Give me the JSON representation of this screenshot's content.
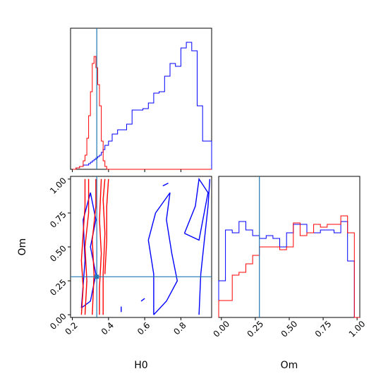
{
  "chart_data": {
    "type": "corner",
    "parameters": [
      "H0",
      "Om"
    ],
    "truths": {
      "H0": 0.335,
      "Om": 0.28
    },
    "colors": {
      "series_a": "#ff0000",
      "series_b": "#0000ff",
      "truth": "#1f77b4"
    },
    "axes": {
      "H0": {
        "xlabel": "H0",
        "xlim": [
          0.19,
          0.97
        ],
        "ticks": [
          0.2,
          0.4,
          0.6,
          0.8
        ],
        "tick_labels": [
          "0.2",
          "0.4",
          "0.6",
          "0.8"
        ]
      },
      "Om": {
        "label": "Om",
        "lim": [
          -0.02,
          1.02
        ],
        "ticks": [
          0.0,
          0.25,
          0.5,
          0.75,
          1.0
        ],
        "tick_labels": [
          "0.00",
          "0.25",
          "0.50",
          "0.75",
          "1.00"
        ]
      }
    },
    "hist_H0": {
      "bins": [
        0.2,
        0.22,
        0.24,
        0.26,
        0.27,
        0.28,
        0.29,
        0.3,
        0.31,
        0.32,
        0.33,
        0.34,
        0.35,
        0.36,
        0.37,
        0.38,
        0.39,
        0.4,
        0.42,
        0.45,
        0.48,
        0.5,
        0.53,
        0.56,
        0.59,
        0.62,
        0.65,
        0.68,
        0.71,
        0.74,
        0.77,
        0.8,
        0.83,
        0.86,
        0.89,
        0.92,
        0.95,
        0.97
      ],
      "series_a": [
        0.0,
        0.01,
        0.02,
        0.06,
        0.1,
        0.22,
        0.38,
        0.55,
        0.75,
        0.8,
        0.72,
        0.6,
        0.45,
        0.2,
        0.06,
        0.02,
        0.0,
        0.0,
        0.0,
        0.0,
        0.0,
        0.0,
        0.0,
        0.0,
        0.0,
        0.0,
        0.0,
        0.0,
        0.0,
        0.0,
        0.0,
        0.0,
        0.0,
        0.0,
        0.0,
        0.0,
        0.0
      ],
      "series_b": [
        0.0,
        0.01,
        0.02,
        0.03,
        0.03,
        0.03,
        0.04,
        0.05,
        0.06,
        0.07,
        0.08,
        0.09,
        0.1,
        0.12,
        0.14,
        0.17,
        0.17,
        0.2,
        0.25,
        0.28,
        0.28,
        0.32,
        0.42,
        0.42,
        0.43,
        0.47,
        0.54,
        0.55,
        0.66,
        0.75,
        0.73,
        0.86,
        0.9,
        0.84,
        0.45,
        0.2,
        0.2
      ]
    },
    "hist_Om": {
      "bins": [
        -0.02,
        0.03,
        0.08,
        0.13,
        0.18,
        0.23,
        0.28,
        0.33,
        0.38,
        0.43,
        0.48,
        0.53,
        0.58,
        0.63,
        0.68,
        0.73,
        0.78,
        0.83,
        0.88,
        0.93,
        0.98,
        1.02
      ],
      "series_a": [
        0.12,
        0.12,
        0.3,
        0.32,
        0.38,
        0.44,
        0.5,
        0.5,
        0.5,
        0.48,
        0.5,
        0.67,
        0.58,
        0.6,
        0.66,
        0.64,
        0.66,
        0.66,
        0.72,
        0.6,
        0.0
      ],
      "series_b": [
        0.26,
        0.62,
        0.6,
        0.68,
        0.62,
        0.58,
        0.56,
        0.58,
        0.56,
        0.5,
        0.6,
        0.66,
        0.66,
        0.6,
        0.6,
        0.62,
        0.62,
        0.6,
        0.68,
        0.4,
        0.0
      ]
    },
    "contours_series_a": [
      [
        [
          0.25,
          0.0
        ],
        [
          0.26,
          0.2
        ],
        [
          0.25,
          0.4
        ],
        [
          0.26,
          0.6
        ],
        [
          0.27,
          0.8
        ],
        [
          0.27,
          1.0
        ]
      ],
      [
        [
          0.27,
          0.0
        ],
        [
          0.28,
          0.25
        ],
        [
          0.27,
          0.5
        ],
        [
          0.29,
          0.75
        ],
        [
          0.29,
          1.0
        ]
      ],
      [
        [
          0.31,
          0.0
        ],
        [
          0.32,
          0.3
        ],
        [
          0.31,
          0.55
        ],
        [
          0.33,
          0.8
        ],
        [
          0.33,
          1.0
        ]
      ],
      [
        [
          0.35,
          0.0
        ],
        [
          0.35,
          0.2
        ],
        [
          0.36,
          0.45
        ],
        [
          0.35,
          0.7
        ],
        [
          0.36,
          1.0
        ]
      ],
      [
        [
          0.37,
          0.0
        ],
        [
          0.37,
          0.3
        ],
        [
          0.38,
          0.6
        ],
        [
          0.37,
          0.85
        ],
        [
          0.38,
          1.0
        ]
      ],
      [
        [
          0.38,
          0.3
        ],
        [
          0.39,
          0.55
        ],
        [
          0.39,
          0.8
        ],
        [
          0.4,
          1.0
        ]
      ]
    ],
    "contours_series_b": [
      [
        [
          0.25,
          0.05
        ],
        [
          0.3,
          0.1
        ],
        [
          0.33,
          0.3
        ],
        [
          0.3,
          0.5
        ],
        [
          0.33,
          0.7
        ],
        [
          0.3,
          0.9
        ],
        [
          0.26,
          0.7
        ],
        [
          0.27,
          0.4
        ],
        [
          0.25,
          0.05
        ]
      ],
      [
        [
          0.65,
          0.0
        ],
        [
          0.72,
          0.1
        ],
        [
          0.78,
          0.25
        ],
        [
          0.75,
          0.45
        ],
        [
          0.72,
          0.7
        ],
        [
          0.74,
          0.9
        ],
        [
          0.66,
          0.75
        ],
        [
          0.62,
          0.55
        ],
        [
          0.65,
          0.3
        ],
        [
          0.65,
          0.0
        ]
      ],
      [
        [
          0.82,
          0.6
        ],
        [
          0.88,
          0.8
        ],
        [
          0.9,
          1.0
        ],
        [
          0.95,
          0.9
        ],
        [
          0.9,
          0.55
        ],
        [
          0.82,
          0.6
        ]
      ],
      [
        [
          0.9,
          0.0
        ],
        [
          0.91,
          0.3
        ],
        [
          0.93,
          0.55
        ],
        [
          0.95,
          0.8
        ],
        [
          0.96,
          1.0
        ]
      ],
      [
        [
          0.7,
          0.95
        ],
        [
          0.73,
          0.97
        ],
        [
          0.7,
          0.95
        ]
      ],
      [
        [
          0.58,
          0.1
        ],
        [
          0.6,
          0.12
        ],
        [
          0.58,
          0.1
        ]
      ],
      [
        [
          0.47,
          0.02
        ],
        [
          0.47,
          0.06
        ]
      ]
    ]
  }
}
